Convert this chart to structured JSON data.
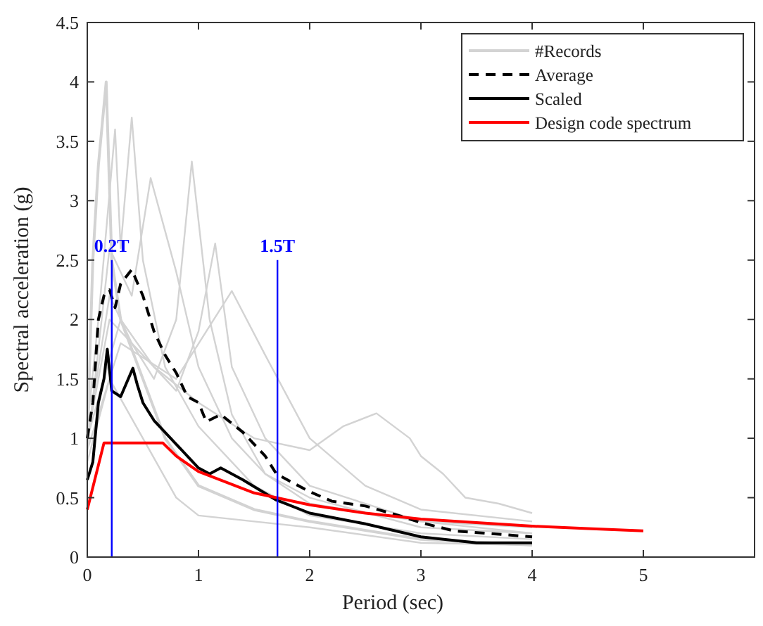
{
  "chart_data": {
    "type": "line",
    "xlabel": "Period (sec)",
    "ylabel": "Spectral acceleration (g)",
    "xlim": [
      0,
      6
    ],
    "ylim": [
      0,
      4.5
    ],
    "xticks": [
      0,
      1,
      2,
      3,
      4,
      5
    ],
    "yticks": [
      0,
      0.5,
      1,
      1.5,
      2,
      2.5,
      3,
      3.5,
      4,
      4.5
    ],
    "grid": false,
    "legend": "top right",
    "series": [
      {
        "name": "#Records",
        "color": "#d3d3d3",
        "line_style": "solid",
        "x": [
          0,
          0.05,
          0.1,
          0.17,
          0.22,
          0.3,
          0.5,
          0.7,
          1,
          1.5,
          2,
          3,
          4
        ],
        "values": [
          1,
          2.5,
          3.3,
          4,
          2.5,
          2,
          1.5,
          1,
          0.6,
          0.4,
          0.3,
          0.15,
          0.1
        ]
      },
      {
        "color": "#d3d3d3",
        "line_style": "solid",
        "x": [
          0,
          0.1,
          0.25,
          0.3,
          0.4,
          0.5,
          0.7,
          1,
          1.5,
          2,
          3,
          4
        ],
        "values": [
          1.1,
          2,
          3.6,
          2.6,
          3.7,
          2.5,
          1.6,
          1.1,
          0.6,
          0.35,
          0.2,
          0.15
        ]
      },
      {
        "color": "#d3d3d3",
        "line_style": "solid",
        "x": [
          0,
          0.2,
          0.4,
          0.6,
          0.8,
          0.94,
          1.1,
          1.3,
          1.6,
          2,
          3,
          4
        ],
        "values": [
          1,
          2.2,
          1.8,
          1.5,
          2,
          3.33,
          2,
          1.2,
          0.7,
          0.45,
          0.3,
          0.25
        ]
      },
      {
        "color": "#d3d3d3",
        "line_style": "solid",
        "x": [
          0,
          0.2,
          0.4,
          0.57,
          0.8,
          1,
          1.3,
          1.6,
          2,
          3,
          4
        ],
        "values": [
          0.9,
          2.6,
          2.2,
          3.19,
          2.4,
          1.6,
          1,
          0.7,
          0.5,
          0.25,
          0.2
        ]
      },
      {
        "color": "#d3d3d3",
        "line_style": "solid",
        "x": [
          0,
          0.2,
          0.5,
          0.8,
          1,
          1.15,
          1.3,
          1.6,
          2,
          3,
          4
        ],
        "values": [
          1,
          2,
          1.7,
          1.4,
          1.9,
          2.64,
          1.6,
          1,
          0.6,
          0.3,
          0.2
        ]
      },
      {
        "color": "#d3d3d3",
        "line_style": "solid",
        "x": [
          0,
          0.3,
          0.8,
          1.3,
          1.6,
          2,
          2.5,
          3,
          4
        ],
        "values": [
          0.9,
          1.8,
          1.5,
          2.24,
          1.7,
          1,
          0.6,
          0.4,
          0.3
        ]
      },
      {
        "color": "#d3d3d3",
        "line_style": "solid",
        "x": [
          0,
          0.3,
          0.6,
          1,
          1.5,
          2,
          2.3,
          2.6,
          2.9,
          3,
          3.2,
          3.4,
          3.7,
          4
        ],
        "values": [
          1,
          2,
          1.6,
          1.3,
          1,
          0.9,
          1.1,
          1.21,
          1,
          0.85,
          0.7,
          0.5,
          0.45,
          0.37
        ]
      },
      {
        "color": "#d3d3d3",
        "line_style": "solid",
        "x": [
          0,
          0.2,
          0.5,
          0.8,
          1,
          1.5,
          2,
          3,
          4
        ],
        "values": [
          0.8,
          1.5,
          1,
          0.5,
          0.35,
          0.3,
          0.25,
          0.12,
          0.1
        ]
      },
      {
        "name": "Average",
        "color": "#000000",
        "line_style": "dashed",
        "x": [
          0,
          0.05,
          0.1,
          0.15,
          0.2,
          0.25,
          0.3,
          0.4,
          0.5,
          0.6,
          0.7,
          0.8,
          0.9,
          1,
          1.07,
          1.2,
          1.4,
          1.6,
          1.7,
          1.8,
          2,
          2.2,
          2.5,
          2.8,
          3,
          3.3,
          3.6,
          4
        ],
        "values": [
          1,
          1.3,
          2,
          2.2,
          2.25,
          2.1,
          2.3,
          2.42,
          2.2,
          1.9,
          1.7,
          1.55,
          1.35,
          1.3,
          1.14,
          1.2,
          1.05,
          0.85,
          0.7,
          0.65,
          0.55,
          0.47,
          0.43,
          0.35,
          0.29,
          0.22,
          0.2,
          0.17
        ]
      },
      {
        "name": "Scaled",
        "color": "#000000",
        "line_style": "solid",
        "x": [
          0,
          0.05,
          0.1,
          0.15,
          0.18,
          0.22,
          0.3,
          0.41,
          0.45,
          0.5,
          0.6,
          0.8,
          1,
          1.1,
          1.2,
          1.4,
          1.7,
          2,
          2.5,
          3,
          3.5,
          4
        ],
        "values": [
          0.65,
          0.8,
          1.3,
          1.5,
          1.75,
          1.4,
          1.35,
          1.59,
          1.45,
          1.3,
          1.15,
          0.95,
          0.75,
          0.7,
          0.75,
          0.65,
          0.48,
          0.37,
          0.28,
          0.17,
          0.12,
          0.12
        ]
      },
      {
        "name": "Design code spectrum",
        "color": "#ff0000",
        "line_style": "solid",
        "x": [
          0,
          0.15,
          0.68,
          0.8,
          1,
          1.5,
          2,
          2.5,
          3,
          3.5,
          4,
          4.5,
          5
        ],
        "values": [
          0.4,
          0.96,
          0.96,
          0.85,
          0.72,
          0.54,
          0.44,
          0.37,
          0.32,
          0.29,
          0.26,
          0.24,
          0.22
        ]
      },
      {
        "color": "#0000ff",
        "line_style": "solid",
        "x": [
          0.22,
          0.22
        ],
        "values": [
          0,
          2.5
        ]
      },
      {
        "color": "#0000ff",
        "line_style": "solid",
        "x": [
          1.71,
          1.71
        ],
        "values": [
          0,
          2.5
        ]
      }
    ],
    "annotations": [
      {
        "text": "0.2T",
        "x": 0.22,
        "y": 2.5
      },
      {
        "text": "1.5T",
        "x": 1.71,
        "y": 2.5
      }
    ]
  }
}
